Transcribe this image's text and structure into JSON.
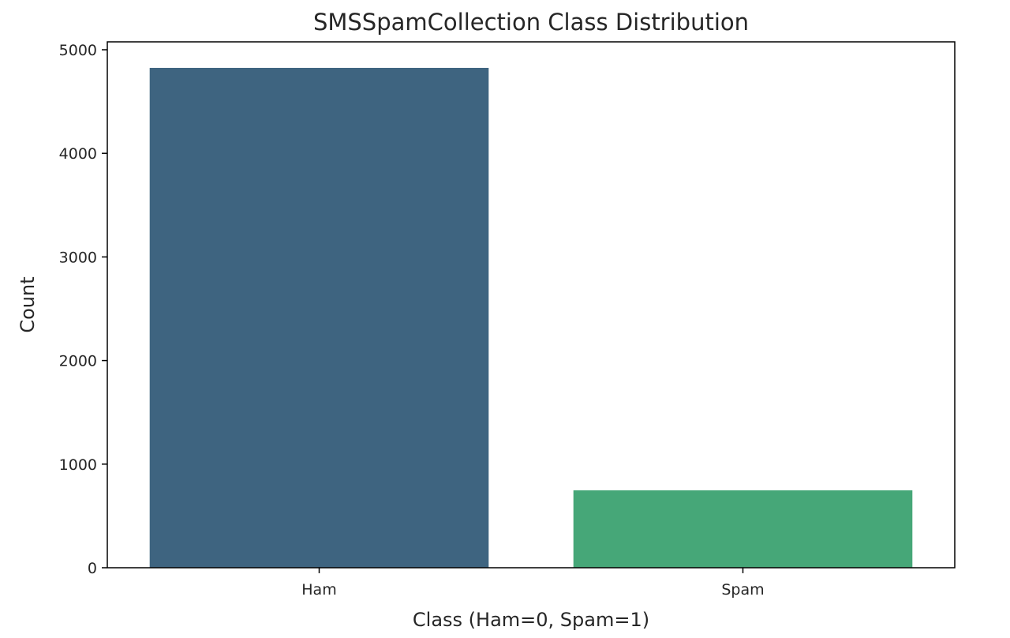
{
  "chart_data": {
    "type": "bar",
    "title": "SMSSpamCollection Class Distribution",
    "xlabel": "Class (Ham=0, Spam=1)",
    "ylabel": "Count",
    "categories": [
      "Ham",
      "Spam"
    ],
    "values": [
      4825,
      747
    ],
    "colors": [
      "#3e6480",
      "#46a778"
    ],
    "ylim": [
      0,
      5000
    ],
    "yticks": [
      0,
      1000,
      2000,
      3000,
      4000,
      5000
    ],
    "ytick_labels": [
      "0",
      "1000",
      "2000",
      "3000",
      "4000",
      "5000"
    ],
    "grid": false,
    "legend": "none"
  }
}
